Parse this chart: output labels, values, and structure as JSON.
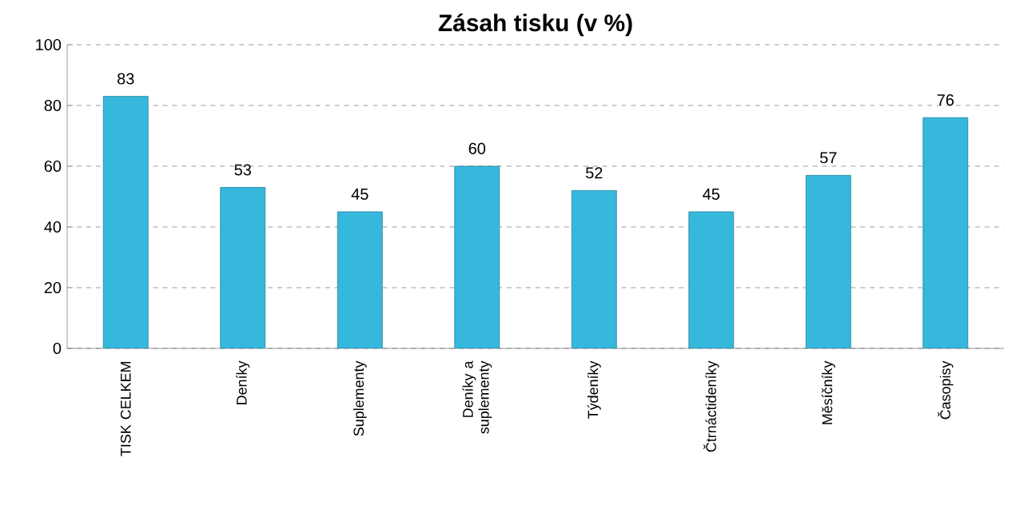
{
  "chart_data": {
    "type": "bar",
    "title": "Zásah tisku (v %)",
    "categories": [
      "TISK CELKEM",
      "Deníky",
      "Suplementy",
      "Deníky a suplementy",
      "Týdeníky",
      "Čtrnáctideníky",
      "Měsíčníky",
      "Časopisy"
    ],
    "values": [
      83,
      53,
      45,
      60,
      52,
      45,
      57,
      76
    ],
    "color": "#35b8dc",
    "ylim": [
      0,
      100
    ],
    "yticks": [
      0,
      20,
      40,
      60,
      80,
      100
    ],
    "grid": "y",
    "data_labels": true
  }
}
